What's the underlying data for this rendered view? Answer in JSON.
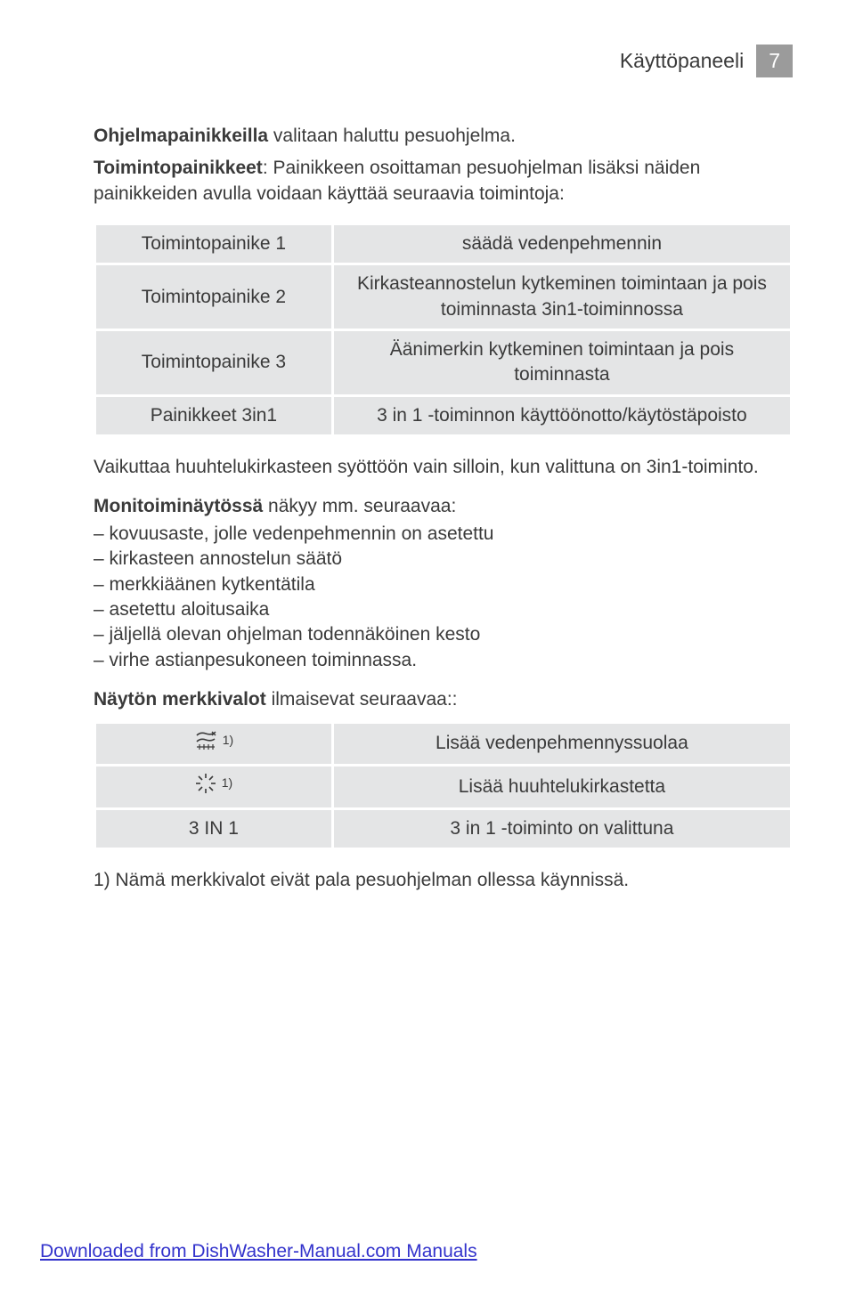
{
  "header": {
    "title": "Käyttöpaneeli",
    "page": "7"
  },
  "intro1_bold": "Ohjelmapainikkeilla",
  "intro1_rest": " valitaan haluttu pesuohjelma.",
  "intro2_bold": "Toimintopainikkeet",
  "intro2_rest": ": Painikkeen osoittaman pesuohjelman lisäksi näiden painikkeiden avulla voidaan käyttää seuraavia toimintoja:",
  "buttons_table": {
    "rows": [
      {
        "c1": "Toimintopainike 1",
        "c2": "säädä vedenpehmennin"
      },
      {
        "c1": "Toimintopainike 2",
        "c2": "Kirkasteannostelun kytkeminen toimintaan ja pois toiminnasta 3in1-toiminnossa"
      },
      {
        "c1": "Toimintopainike 3",
        "c2": "Äänimerkin kytkeminen toimintaan ja pois toiminnasta"
      },
      {
        "c1": "Painikkeet 3in1",
        "c2": "3 in 1 -toiminnon käyttöönotto/käytöstäpoisto"
      }
    ]
  },
  "after_table": "Vaikuttaa huuhtelukirkasteen syöttöön vain silloin, kun valittuna on 3in1-toiminto.",
  "mono_bold": "Monitoiminäytössä",
  "mono_rest": " näkyy mm. seuraavaa:",
  "bullets": [
    "kovuusaste, jolle vedenpehmennin on asetettu",
    "kirkasteen annostelun säätö",
    "merkkiäänen kytkentätila",
    "asetettu aloitusaika",
    "jäljellä olevan ohjelman todennäköinen kesto",
    "virhe astianpesukoneen toiminnassa."
  ],
  "ind_bold": "Näytön merkkivalot",
  "ind_rest": " ilmaisevat seuraavaa::",
  "indicators_table": {
    "rows": [
      {
        "icon": "salt",
        "sup": "1)",
        "c2": "Lisää vedenpehmennyssuolaa"
      },
      {
        "icon": "rinse",
        "sup": "1)",
        "c2": "Lisää huuhtelukirkastetta"
      },
      {
        "icon": "",
        "label": "3 IN 1",
        "c2": "3 in 1 -toiminto on valittuna"
      }
    ]
  },
  "footnote": "1) Nämä merkkivalot eivät pala pesuohjelman ollessa käynnissä.",
  "footer_link": "Downloaded from DishWasher-Manual.com Manuals",
  "colors": {
    "cell_bg": "#e4e5e6",
    "page_box_bg": "#9b9b9b",
    "text": "#3a3a3a",
    "link": "#3333cc",
    "background": "#ffffff"
  }
}
